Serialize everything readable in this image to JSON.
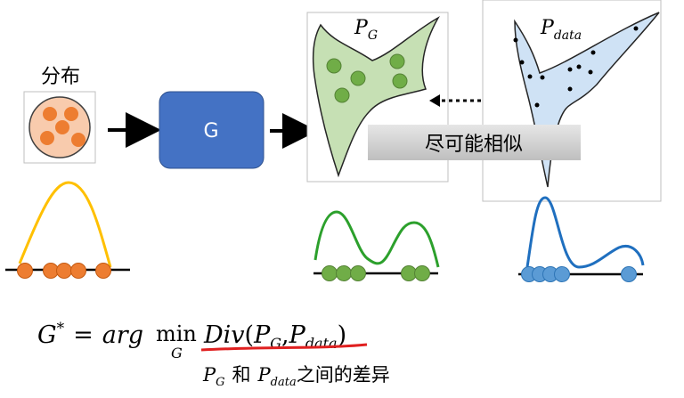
{
  "labels": {
    "distribution": "分布",
    "generator": "G",
    "p": "P",
    "g_sub": "G",
    "data_sub": "data",
    "similar": "尽可能相似"
  },
  "formula": {
    "lhs": "G",
    "star": "*",
    "equals": "=",
    "arg": "arg",
    "min": "min",
    "min_sub": "G",
    "div": "Div",
    "open": "(",
    "p1": "P",
    "p1_sub": "G",
    "comma": ",",
    "p2": "P",
    "p2_sub": "data",
    "close": ")",
    "caption_p1": "P",
    "caption_p1_sub": "G",
    "caption_and": "和",
    "caption_p2": "P",
    "caption_p2_sub": "data",
    "caption_tail": "之间的差异"
  },
  "colors": {
    "orange": "#ed7d31",
    "green": "#70ad47",
    "blue_dot": "#5b9bd5",
    "blue_box": "#4472c4",
    "yellow_curve": "#ffc000",
    "green_curve": "#2ca02c",
    "blue_curve": "#1f6fbf",
    "pg_fill": "#c6e0b4",
    "pdata_fill": "#cfe2f5",
    "underline": "#e02020"
  }
}
